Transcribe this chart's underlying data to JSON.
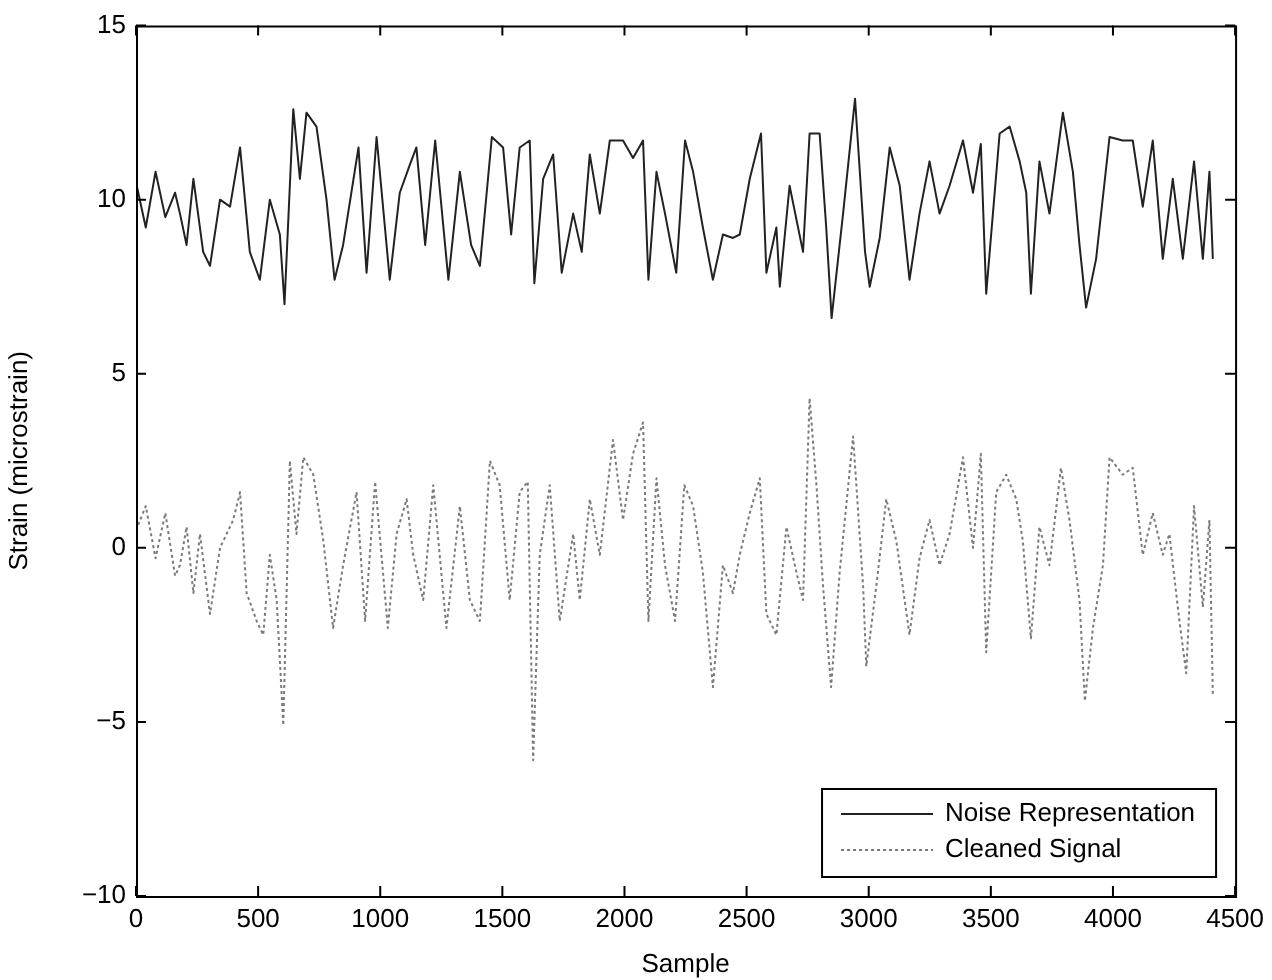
{
  "chart_data": {
    "type": "line",
    "xlabel": "Sample",
    "ylabel": "Strain (microstrain)",
    "xlim": [
      0,
      4500
    ],
    "ylim": [
      -10,
      15
    ],
    "xticks": [
      0,
      500,
      1000,
      1500,
      2000,
      2500,
      3000,
      3500,
      4000,
      4500
    ],
    "yticks": [
      -10,
      -5,
      0,
      5,
      10,
      15
    ],
    "grid": false,
    "legend": "bottom right",
    "marker": "none",
    "series": [
      {
        "name": "Noise Representation",
        "color": "#222222",
        "line_style": "solid",
        "x": [
          0,
          40,
          80,
          120,
          160,
          180,
          207,
          235,
          275,
          303,
          344,
          385,
          426,
          466,
          507,
          548,
          589,
          608,
          644,
          671,
          698,
          739,
          780,
          813,
          848,
          911,
          944,
          985,
          1039,
          1080,
          1121,
          1148,
          1184,
          1225,
          1279,
          1326,
          1372,
          1408,
          1457,
          1503,
          1536,
          1571,
          1612,
          1631,
          1667,
          1708,
          1743,
          1790,
          1825,
          1858,
          1899,
          1940,
          1994,
          2035,
          2076,
          2098,
          2131,
          2166,
          2212,
          2248,
          2281,
          2321,
          2362,
          2403,
          2444,
          2472,
          2513,
          2559,
          2581,
          2622,
          2636,
          2676,
          2731,
          2758,
          2799,
          2826,
          2848,
          2895,
          2944,
          2985,
          3004,
          3045,
          3086,
          3127,
          3167,
          3208,
          3249,
          3290,
          3331,
          3386,
          3427,
          3459,
          3481,
          3536,
          3577,
          3618,
          3645,
          3664,
          3699,
          3740,
          3795,
          3836,
          3863,
          3890,
          3931,
          3986,
          4040,
          4081,
          4122,
          4163,
          4204,
          4245,
          4286,
          4332,
          4368,
          4395,
          4409
        ],
        "values": [
          10.5,
          9.2,
          10.8,
          9.5,
          10.2,
          9.6,
          8.7,
          10.6,
          8.5,
          8.1,
          10.0,
          9.8,
          11.5,
          8.5,
          7.7,
          10.0,
          9.0,
          7.0,
          12.6,
          10.6,
          12.5,
          12.1,
          10.0,
          7.7,
          8.7,
          11.5,
          7.9,
          11.8,
          7.7,
          10.2,
          11.0,
          11.5,
          8.7,
          11.7,
          7.7,
          10.8,
          8.7,
          8.1,
          11.8,
          11.5,
          9.0,
          11.5,
          11.7,
          7.6,
          10.6,
          11.3,
          7.9,
          9.6,
          8.5,
          11.3,
          9.6,
          11.7,
          11.7,
          11.2,
          11.7,
          7.7,
          10.8,
          9.6,
          7.9,
          11.7,
          10.8,
          9.2,
          7.7,
          9.0,
          8.9,
          9.0,
          10.6,
          11.9,
          7.9,
          9.2,
          7.5,
          10.4,
          8.5,
          11.9,
          11.9,
          9.2,
          6.6,
          9.6,
          12.9,
          8.5,
          7.5,
          8.9,
          11.5,
          10.4,
          7.7,
          9.6,
          11.1,
          9.6,
          10.4,
          11.7,
          10.2,
          11.6,
          7.3,
          11.9,
          12.1,
          11.1,
          10.2,
          7.3,
          11.1,
          9.6,
          12.5,
          10.8,
          8.7,
          6.9,
          8.3,
          11.8,
          11.7,
          11.7,
          9.8,
          11.7,
          8.3,
          10.6,
          8.3,
          11.1,
          8.3,
          10.8,
          8.3
        ]
      },
      {
        "name": "Cleaned Signal",
        "color": "#7a7a7a",
        "line_style": "dotted",
        "x": [
          0,
          40,
          80,
          120,
          160,
          180,
          207,
          235,
          262,
          303,
          344,
          398,
          426,
          453,
          494,
          521,
          548,
          576,
          603,
          630,
          657,
          685,
          726,
          767,
          807,
          848,
          903,
          938,
          979,
          1031,
          1067,
          1108,
          1135,
          1176,
          1217,
          1271,
          1326,
          1367,
          1408,
          1449,
          1489,
          1530,
          1571,
          1604,
          1626,
          1653,
          1694,
          1735,
          1790,
          1817,
          1858,
          1899,
          1953,
          1994,
          2035,
          2076,
          2098,
          2131,
          2166,
          2207,
          2245,
          2281,
          2321,
          2362,
          2403,
          2444,
          2472,
          2513,
          2554,
          2581,
          2622,
          2663,
          2704,
          2731,
          2758,
          2786,
          2813,
          2846,
          2881,
          2936,
          2977,
          2990,
          3031,
          3072,
          3113,
          3167,
          3208,
          3249,
          3290,
          3331,
          3386,
          3427,
          3459,
          3481,
          3522,
          3563,
          3604,
          3631,
          3664,
          3699,
          3740,
          3787,
          3822,
          3863,
          3885,
          3918,
          3959,
          3986,
          4040,
          4081,
          4122,
          4163,
          4204,
          4231,
          4272,
          4300,
          4332,
          4368,
          4395,
          4409
        ],
        "values": [
          0.5,
          1.2,
          -0.3,
          1.0,
          -0.8,
          -0.5,
          0.6,
          -1.3,
          0.4,
          -1.9,
          0,
          0.8,
          1.6,
          -1.3,
          -2.1,
          -2.5,
          -0.2,
          -1.5,
          -5.1,
          2.5,
          0.4,
          2.6,
          2.1,
          0.2,
          -2.3,
          -0.5,
          1.6,
          -2.1,
          1.9,
          -2.3,
          0.4,
          1.4,
          -0.2,
          -1.5,
          1.8,
          -2.3,
          1.2,
          -1.5,
          -2.1,
          2.5,
          1.8,
          -1.5,
          1.6,
          1.9,
          -6.1,
          -0.2,
          1.8,
          -2.1,
          0.4,
          -1.5,
          1.4,
          -0.2,
          3.1,
          0.8,
          2.7,
          3.6,
          -2.1,
          2.0,
          -0.5,
          -2.1,
          1.8,
          1.2,
          -0.7,
          -4.0,
          -0.5,
          -1.3,
          -0.2,
          1.0,
          2.0,
          -1.9,
          -2.5,
          0.6,
          -0.7,
          -1.5,
          4.3,
          1.8,
          -1.1,
          -4.0,
          -0.7,
          3.2,
          -1.1,
          -3.4,
          -1.1,
          1.4,
          0.2,
          -2.5,
          -0.3,
          0.8,
          -0.5,
          0.4,
          2.6,
          0,
          2.7,
          -3.0,
          1.6,
          2.1,
          1.4,
          0.2,
          -2.6,
          0.6,
          -0.5,
          2.3,
          0.8,
          -1.5,
          -4.4,
          -2.3,
          -0.5,
          2.6,
          2.1,
          2.3,
          -0.2,
          1.0,
          -0.2,
          0.4,
          -2.1,
          -3.6,
          1.2,
          -1.7,
          0.8,
          -4.2
        ]
      }
    ]
  }
}
